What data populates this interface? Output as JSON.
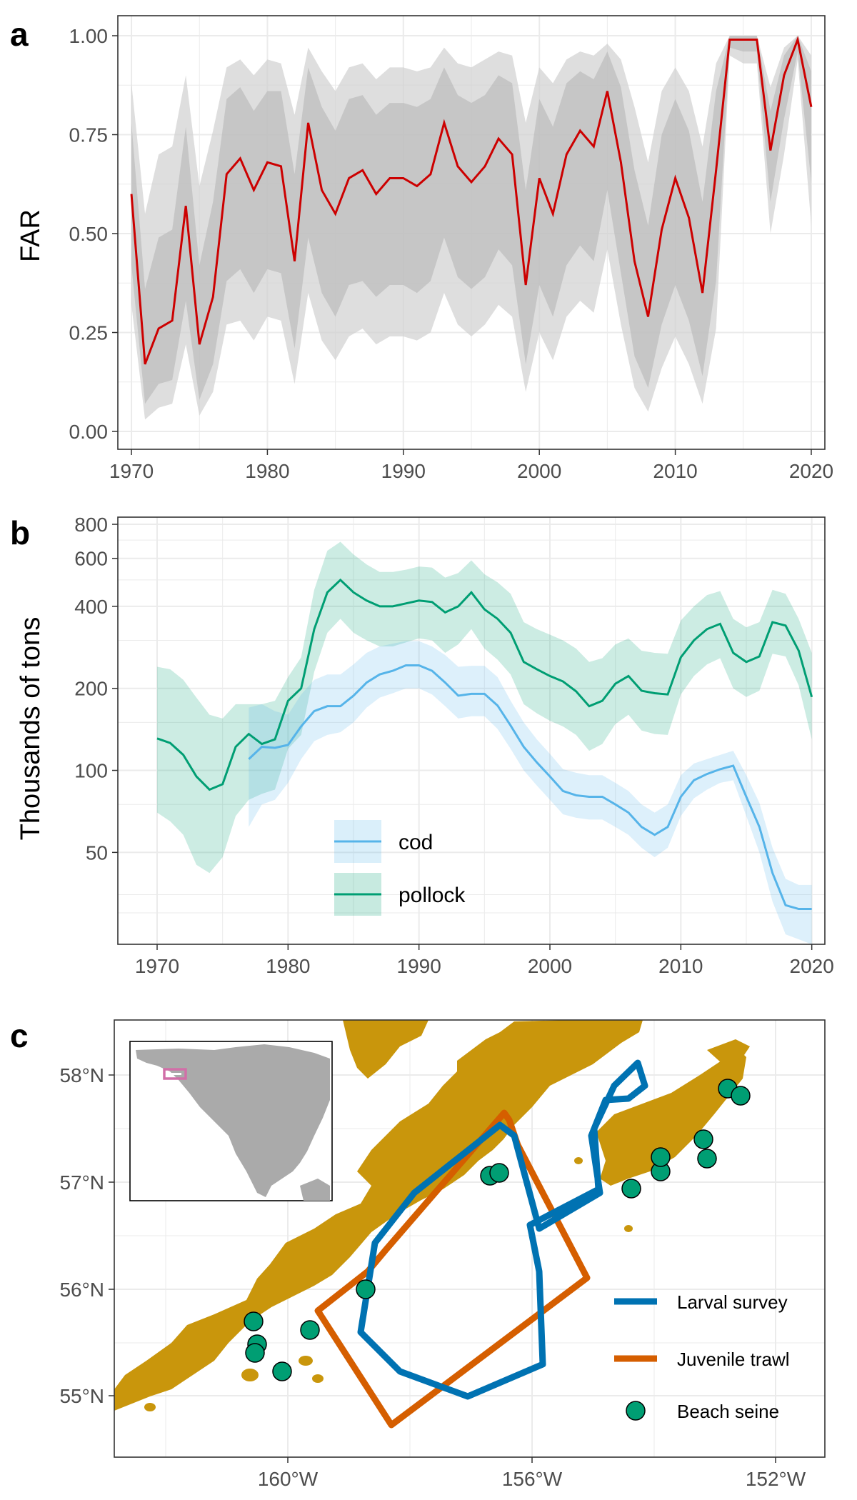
{
  "panels": {
    "a": "a",
    "b": "b",
    "c": "c"
  },
  "colors": {
    "far_line": "#cc0000",
    "band_gray": "#bdbdbd",
    "cod": "#56b4e9",
    "pollock": "#009e73",
    "land": "#c9960c",
    "larval": "#0072b2",
    "juvenile": "#d55e00",
    "beach": "#009e73"
  },
  "chart_data": [
    {
      "type": "line",
      "panel": "a",
      "title": "",
      "xlabel": "",
      "ylabel": "FAR",
      "xlim": [
        1969,
        2021
      ],
      "ylim": [
        0,
        1
      ],
      "x_ticks": [
        "1970",
        "1980",
        "1990",
        "2000",
        "2010",
        "2020"
      ],
      "y_ticks": [
        "0.00",
        "0.25",
        "0.50",
        "0.75",
        "1.00"
      ],
      "grid": true,
      "x": [
        1970,
        1971,
        1972,
        1973,
        1974,
        1975,
        1976,
        1977,
        1978,
        1979,
        1980,
        1981,
        1982,
        1983,
        1984,
        1985,
        1986,
        1987,
        1988,
        1989,
        1990,
        1991,
        1992,
        1993,
        1994,
        1995,
        1996,
        1997,
        1998,
        1999,
        2000,
        2001,
        2002,
        2003,
        2004,
        2005,
        2006,
        2007,
        2008,
        2009,
        2010,
        2011,
        2012,
        2013,
        2014,
        2015,
        2016,
        2017,
        2018,
        2019,
        2020
      ],
      "series": [
        {
          "values": [
            0.6,
            0.17,
            0.26,
            0.28,
            0.57,
            0.22,
            0.34,
            0.65,
            0.69,
            0.61,
            0.68,
            0.67,
            0.43,
            0.78,
            0.61,
            0.55,
            0.64,
            0.66,
            0.6,
            0.64,
            0.64,
            0.62,
            0.65,
            0.78,
            0.67,
            0.63,
            0.67,
            0.74,
            0.7,
            0.37,
            0.64,
            0.55,
            0.7,
            0.76,
            0.72,
            0.86,
            0.68,
            0.43,
            0.29,
            0.51,
            0.64,
            0.54,
            0.35,
            0.66,
            0.99,
            0.99,
            0.99,
            0.71,
            0.9,
            0.99,
            0.82
          ]
        }
      ],
      "bands": {
        "outer_lower": [
          0.32,
          0.03,
          0.06,
          0.07,
          0.22,
          0.04,
          0.1,
          0.27,
          0.28,
          0.23,
          0.29,
          0.28,
          0.12,
          0.35,
          0.23,
          0.18,
          0.24,
          0.26,
          0.22,
          0.24,
          0.24,
          0.23,
          0.25,
          0.35,
          0.27,
          0.24,
          0.27,
          0.32,
          0.29,
          0.1,
          0.25,
          0.18,
          0.29,
          0.33,
          0.3,
          0.46,
          0.27,
          0.11,
          0.05,
          0.16,
          0.24,
          0.17,
          0.07,
          0.26,
          0.95,
          0.93,
          0.93,
          0.5,
          0.7,
          0.94,
          0.52
        ],
        "outer_upper": [
          0.88,
          0.55,
          0.7,
          0.72,
          0.9,
          0.62,
          0.76,
          0.92,
          0.94,
          0.9,
          0.94,
          0.93,
          0.8,
          0.97,
          0.91,
          0.86,
          0.92,
          0.93,
          0.89,
          0.92,
          0.92,
          0.91,
          0.92,
          0.97,
          0.93,
          0.92,
          0.94,
          0.96,
          0.95,
          0.78,
          0.92,
          0.88,
          0.94,
          0.96,
          0.95,
          0.98,
          0.94,
          0.82,
          0.68,
          0.86,
          0.92,
          0.86,
          0.72,
          0.93,
          1.0,
          1.0,
          1.0,
          0.87,
          0.97,
          1.0,
          0.95
        ],
        "inner_lower": [
          0.42,
          0.07,
          0.12,
          0.13,
          0.33,
          0.08,
          0.17,
          0.38,
          0.41,
          0.35,
          0.41,
          0.4,
          0.21,
          0.49,
          0.35,
          0.29,
          0.37,
          0.38,
          0.34,
          0.37,
          0.37,
          0.35,
          0.38,
          0.49,
          0.39,
          0.36,
          0.39,
          0.46,
          0.42,
          0.17,
          0.37,
          0.29,
          0.42,
          0.47,
          0.43,
          0.61,
          0.4,
          0.19,
          0.11,
          0.27,
          0.37,
          0.28,
          0.14,
          0.38,
          0.97,
          0.96,
          0.96,
          0.58,
          0.79,
          0.96,
          0.63
        ],
        "inner_upper": [
          0.78,
          0.36,
          0.49,
          0.51,
          0.77,
          0.42,
          0.58,
          0.84,
          0.87,
          0.81,
          0.86,
          0.86,
          0.65,
          0.92,
          0.82,
          0.76,
          0.84,
          0.85,
          0.8,
          0.83,
          0.83,
          0.82,
          0.84,
          0.92,
          0.85,
          0.83,
          0.85,
          0.9,
          0.88,
          0.61,
          0.84,
          0.77,
          0.88,
          0.91,
          0.89,
          0.96,
          0.87,
          0.66,
          0.52,
          0.75,
          0.84,
          0.76,
          0.58,
          0.86,
          1.0,
          1.0,
          1.0,
          0.81,
          0.95,
          1.0,
          0.91
        ]
      }
    },
    {
      "type": "line",
      "panel": "b",
      "title": "",
      "xlabel": "",
      "ylabel": "Thousands of tons",
      "y_scale": "log",
      "xlim": [
        1967,
        2021
      ],
      "ylim": [
        23,
        850
      ],
      "x_ticks": [
        "1970",
        "1980",
        "1990",
        "2000",
        "2010",
        "2020"
      ],
      "y_ticks": [
        "50",
        "100",
        "200",
        "400",
        "600",
        "800"
      ],
      "grid": true,
      "legend_position": "bottom-left inside",
      "series": [
        {
          "name": "cod",
          "x": [
            1977,
            1978,
            1979,
            1980,
            1981,
            1982,
            1983,
            1984,
            1985,
            1986,
            1987,
            1988,
            1989,
            1990,
            1991,
            1992,
            1993,
            1994,
            1995,
            1996,
            1997,
            1998,
            1999,
            2000,
            2001,
            2002,
            2003,
            2004,
            2005,
            2006,
            2007,
            2008,
            2009,
            2010,
            2011,
            2012,
            2013,
            2014,
            2015,
            2016,
            2017,
            2018,
            2019,
            2020
          ],
          "values": [
            110,
            122,
            121,
            124,
            145,
            165,
            172,
            172,
            188,
            210,
            225,
            232,
            243,
            243,
            232,
            210,
            188,
            191,
            191,
            173,
            146,
            122,
            107,
            95,
            84,
            81,
            80,
            80,
            75,
            70,
            62,
            58,
            62,
            80,
            92,
            97,
            101,
            104,
            80,
            62,
            42,
            32,
            31,
            31
          ],
          "lower": [
            62,
            75,
            78,
            90,
            110,
            128,
            135,
            138,
            150,
            170,
            185,
            192,
            200,
            200,
            190,
            172,
            155,
            158,
            158,
            142,
            120,
            100,
            88,
            78,
            69,
            67,
            66,
            66,
            62,
            58,
            52,
            48,
            52,
            68,
            79,
            85,
            90,
            92,
            68,
            50,
            33,
            25,
            24,
            23
          ],
          "upper": [
            170,
            175,
            165,
            160,
            190,
            215,
            225,
            225,
            245,
            270,
            285,
            292,
            298,
            298,
            285,
            265,
            240,
            242,
            242,
            220,
            180,
            150,
            130,
            115,
            101,
            98,
            96,
            96,
            90,
            84,
            75,
            70,
            75,
            96,
            106,
            110,
            114,
            118,
            96,
            76,
            52,
            40,
            38,
            38
          ]
        },
        {
          "name": "pollock",
          "x": [
            1970,
            1971,
            1972,
            1973,
            1974,
            1975,
            1976,
            1977,
            1978,
            1979,
            1980,
            1981,
            1982,
            1983,
            1984,
            1985,
            1986,
            1987,
            1988,
            1989,
            1990,
            1991,
            1992,
            1993,
            1994,
            1995,
            1996,
            1997,
            1998,
            1999,
            2000,
            2001,
            2002,
            2003,
            2004,
            2005,
            2006,
            2007,
            2008,
            2009,
            2010,
            2011,
            2012,
            2013,
            2014,
            2015,
            2016,
            2017,
            2018,
            2019,
            2020
          ],
          "values": [
            131,
            126,
            114,
            95,
            85,
            89,
            122,
            136,
            125,
            130,
            180,
            200,
            330,
            450,
            500,
            450,
            420,
            400,
            400,
            410,
            420,
            415,
            380,
            400,
            450,
            390,
            360,
            320,
            250,
            235,
            222,
            212,
            195,
            172,
            180,
            208,
            222,
            196,
            192,
            190,
            260,
            300,
            330,
            345,
            270,
            250,
            262,
            350,
            340,
            275,
            186
          ],
          "lower": [
            70,
            65,
            58,
            45,
            42,
            48,
            68,
            78,
            82,
            85,
            120,
            135,
            230,
            320,
            360,
            320,
            300,
            285,
            285,
            295,
            305,
            300,
            270,
            290,
            330,
            280,
            255,
            225,
            175,
            162,
            152,
            145,
            135,
            118,
            125,
            148,
            160,
            140,
            136,
            135,
            190,
            222,
            245,
            258,
            200,
            186,
            196,
            268,
            262,
            205,
            130
          ],
          "upper": [
            240,
            235,
            215,
            185,
            160,
            155,
            175,
            175,
            175,
            180,
            220,
            260,
            460,
            640,
            690,
            620,
            570,
            535,
            535,
            545,
            560,
            555,
            510,
            530,
            590,
            525,
            490,
            445,
            350,
            330,
            315,
            300,
            280,
            250,
            258,
            290,
            305,
            275,
            270,
            268,
            355,
            400,
            440,
            455,
            360,
            335,
            350,
            460,
            445,
            360,
            270
          ]
        }
      ]
    }
  ],
  "map": {
    "lat_ticks": [
      "55°N",
      "56°N",
      "57°N",
      "58°N"
    ],
    "lon_ticks": [
      "160°W",
      "156°W",
      "152°W"
    ],
    "legend": [
      {
        "label": "Larval survey"
      },
      {
        "label": "Juvenile trawl"
      },
      {
        "label": "Beach seine"
      }
    ]
  }
}
